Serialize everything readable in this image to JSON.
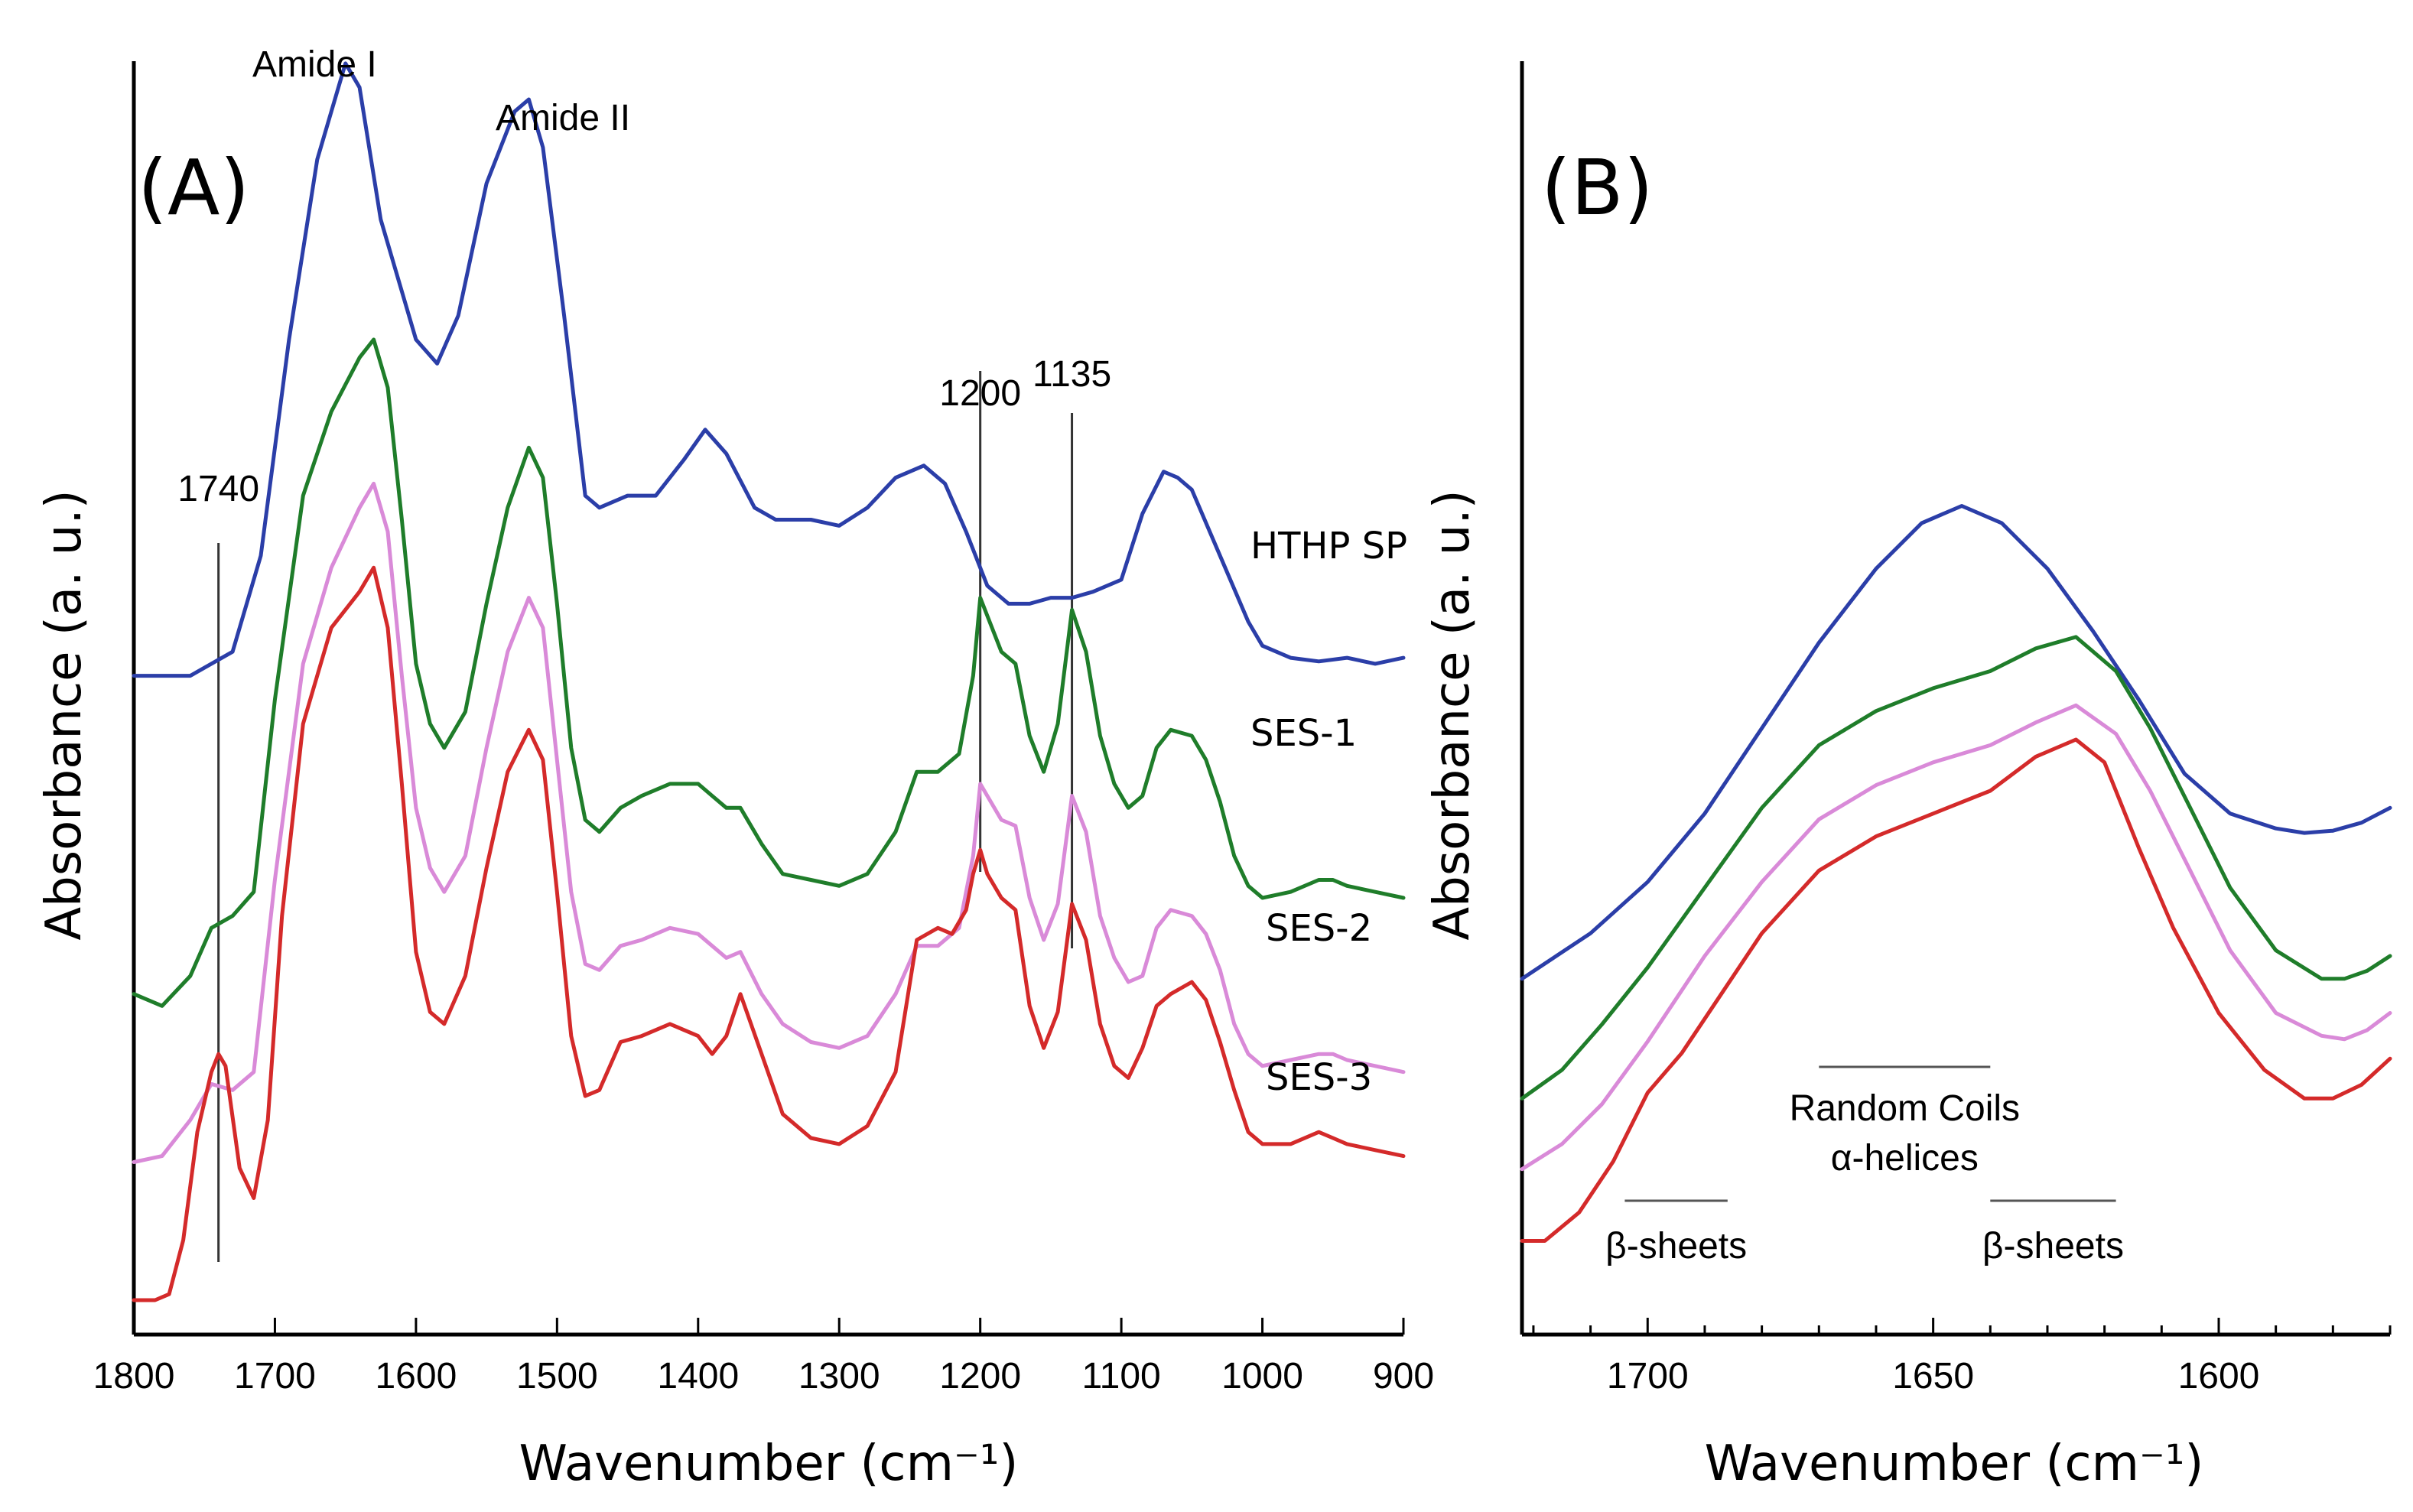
{
  "chart_data": [
    {
      "panel": "(A)",
      "type": "line",
      "xlabel": "Wavenumber (cm⁻¹)",
      "ylabel": "Absorbance (a. u.)",
      "xlim": [
        1800,
        900
      ],
      "x_ticks": [
        1800,
        1700,
        1600,
        1500,
        1400,
        1300,
        1200,
        1100,
        1000,
        900
      ],
      "ylim": [
        0,
        10
      ],
      "band_labels": [
        "Amide I",
        "Amide II"
      ],
      "band_positions": [
        1650,
        1520
      ],
      "marker_lines": [
        {
          "label": "1740",
          "x": 1740
        },
        {
          "label": "1200",
          "x": 1200
        },
        {
          "label": "1135",
          "x": 1135
        }
      ],
      "series": [
        {
          "name": "HTHP SP",
          "color": "#2b3ea8",
          "x": [
            1800,
            1760,
            1730,
            1710,
            1690,
            1670,
            1650,
            1640,
            1625,
            1600,
            1585,
            1570,
            1550,
            1530,
            1520,
            1510,
            1495,
            1480,
            1470,
            1450,
            1430,
            1410,
            1395,
            1380,
            1360,
            1345,
            1320,
            1300,
            1280,
            1260,
            1240,
            1225,
            1210,
            1195,
            1180,
            1165,
            1150,
            1135,
            1120,
            1100,
            1085,
            1070,
            1060,
            1050,
            1030,
            1010,
            1000,
            980,
            960,
            940,
            920,
            900
          ],
          "y": [
            5.2,
            5.2,
            5.4,
            6.2,
            8.0,
            9.5,
            10.3,
            10.1,
            9.0,
            8.0,
            7.8,
            8.2,
            9.3,
            9.9,
            10.0,
            9.6,
            8.2,
            6.7,
            6.6,
            6.7,
            6.7,
            7.0,
            7.25,
            7.05,
            6.6,
            6.5,
            6.5,
            6.45,
            6.6,
            6.85,
            6.95,
            6.8,
            6.4,
            5.95,
            5.8,
            5.8,
            5.85,
            5.85,
            5.9,
            6.0,
            6.55,
            6.9,
            6.85,
            6.75,
            6.2,
            5.65,
            5.45,
            5.35,
            5.32,
            5.35,
            5.3,
            5.35
          ]
        },
        {
          "name": "SES-1",
          "color": "#1f7d2a",
          "x": [
            1800,
            1780,
            1760,
            1745,
            1730,
            1715,
            1700,
            1680,
            1660,
            1640,
            1630,
            1620,
            1610,
            1600,
            1590,
            1580,
            1565,
            1550,
            1535,
            1520,
            1510,
            1500,
            1490,
            1480,
            1470,
            1455,
            1440,
            1420,
            1400,
            1390,
            1380,
            1370,
            1355,
            1340,
            1320,
            1300,
            1280,
            1260,
            1245,
            1230,
            1215,
            1205,
            1200,
            1195,
            1185,
            1175,
            1165,
            1155,
            1145,
            1135,
            1125,
            1115,
            1105,
            1095,
            1085,
            1075,
            1065,
            1050,
            1040,
            1030,
            1020,
            1010,
            1000,
            980,
            960,
            950,
            940,
            920,
            900
          ],
          "y": [
            2.55,
            2.45,
            2.7,
            3.1,
            3.2,
            3.4,
            5.0,
            6.7,
            7.4,
            7.85,
            8.0,
            7.6,
            6.5,
            5.3,
            4.8,
            4.6,
            4.9,
            5.8,
            6.6,
            7.1,
            6.85,
            5.8,
            4.6,
            4.0,
            3.9,
            4.1,
            4.2,
            4.3,
            4.3,
            4.2,
            4.1,
            4.1,
            3.8,
            3.55,
            3.5,
            3.45,
            3.55,
            3.9,
            4.4,
            4.4,
            4.55,
            5.2,
            5.85,
            5.7,
            5.4,
            5.3,
            4.7,
            4.4,
            4.8,
            5.75,
            5.4,
            4.7,
            4.3,
            4.1,
            4.2,
            4.6,
            4.75,
            4.7,
            4.5,
            4.15,
            3.7,
            3.45,
            3.35,
            3.4,
            3.5,
            3.5,
            3.45,
            3.4,
            3.35
          ]
        },
        {
          "name": "SES-2",
          "color": "#d98ad8",
          "x": [
            1800,
            1780,
            1760,
            1745,
            1730,
            1715,
            1700,
            1680,
            1660,
            1640,
            1630,
            1620,
            1610,
            1600,
            1590,
            1580,
            1565,
            1550,
            1535,
            1520,
            1510,
            1500,
            1490,
            1480,
            1470,
            1455,
            1440,
            1420,
            1400,
            1390,
            1380,
            1370,
            1355,
            1340,
            1320,
            1300,
            1280,
            1260,
            1245,
            1230,
            1215,
            1205,
            1200,
            1195,
            1185,
            1175,
            1165,
            1155,
            1145,
            1135,
            1125,
            1115,
            1105,
            1095,
            1085,
            1075,
            1065,
            1050,
            1040,
            1030,
            1020,
            1010,
            1000,
            980,
            960,
            950,
            940,
            920,
            900
          ],
          "y": [
            1.15,
            1.2,
            1.5,
            1.8,
            1.75,
            1.9,
            3.5,
            5.3,
            6.1,
            6.6,
            6.8,
            6.4,
            5.2,
            4.1,
            3.6,
            3.4,
            3.7,
            4.6,
            5.4,
            5.85,
            5.6,
            4.5,
            3.4,
            2.8,
            2.75,
            2.95,
            3.0,
            3.1,
            3.05,
            2.95,
            2.85,
            2.9,
            2.55,
            2.3,
            2.15,
            2.1,
            2.2,
            2.55,
            2.95,
            2.95,
            3.1,
            3.7,
            4.3,
            4.2,
            4.0,
            3.95,
            3.35,
            3.0,
            3.3,
            4.2,
            3.9,
            3.2,
            2.85,
            2.65,
            2.7,
            3.1,
            3.25,
            3.2,
            3.05,
            2.75,
            2.3,
            2.05,
            1.95,
            2.0,
            2.05,
            2.05,
            2.0,
            1.95,
            1.9
          ]
        },
        {
          "name": "SES-3",
          "color": "#d42a2a",
          "x": [
            1800,
            1785,
            1775,
            1765,
            1755,
            1745,
            1740,
            1735,
            1725,
            1715,
            1705,
            1695,
            1680,
            1660,
            1640,
            1630,
            1620,
            1610,
            1600,
            1590,
            1580,
            1565,
            1550,
            1535,
            1520,
            1510,
            1500,
            1490,
            1480,
            1470,
            1455,
            1440,
            1420,
            1400,
            1390,
            1380,
            1370,
            1355,
            1340,
            1320,
            1300,
            1280,
            1260,
            1245,
            1230,
            1220,
            1210,
            1205,
            1200,
            1195,
            1185,
            1175,
            1165,
            1155,
            1145,
            1135,
            1125,
            1115,
            1105,
            1095,
            1085,
            1075,
            1065,
            1050,
            1040,
            1030,
            1020,
            1010,
            1000,
            980,
            960,
            950,
            940,
            920,
            900
          ],
          "y": [
            0.0,
            0.0,
            0.05,
            0.5,
            1.4,
            1.9,
            2.05,
            1.95,
            1.1,
            0.85,
            1.5,
            3.2,
            4.8,
            5.6,
            5.9,
            6.1,
            5.6,
            4.3,
            2.9,
            2.4,
            2.3,
            2.7,
            3.6,
            4.4,
            4.75,
            4.5,
            3.4,
            2.2,
            1.7,
            1.75,
            2.15,
            2.2,
            2.3,
            2.2,
            2.05,
            2.2,
            2.55,
            2.05,
            1.55,
            1.35,
            1.3,
            1.45,
            1.9,
            3.0,
            3.1,
            3.05,
            3.25,
            3.55,
            3.75,
            3.55,
            3.35,
            3.25,
            2.45,
            2.1,
            2.4,
            3.3,
            3.0,
            2.3,
            1.95,
            1.85,
            2.1,
            2.45,
            2.55,
            2.65,
            2.5,
            2.15,
            1.75,
            1.4,
            1.3,
            1.3,
            1.4,
            1.35,
            1.3,
            1.25,
            1.2
          ]
        }
      ],
      "legend": [
        "HTHP SP",
        "SES-1",
        "SES-2",
        "SES-3"
      ]
    },
    {
      "panel": "(B)",
      "type": "line",
      "xlabel": "Wavenumber (cm⁻¹)",
      "ylabel": "Absorbance (a. u.)",
      "xlim": [
        1722,
        1570
      ],
      "x_ticks": [
        1700,
        1650,
        1600
      ],
      "ylim": [
        0,
        10
      ],
      "region_labels": [
        {
          "label": "β-sheets",
          "from": 1704,
          "to": 1686
        },
        {
          "label": "Random Coils",
          "from": 1670,
          "to": 1640
        },
        {
          "label": "α-helices",
          "from": 1670,
          "to": 1640
        },
        {
          "label": "β-sheets",
          "from": 1640,
          "to": 1618
        }
      ],
      "series": [
        {
          "name": "HTHP SP",
          "color": "#2b3ea8",
          "x": [
            1722,
            1710,
            1700,
            1690,
            1680,
            1670,
            1660,
            1652,
            1645,
            1638,
            1630,
            1622,
            1614,
            1606,
            1598,
            1590,
            1585,
            1580,
            1575,
            1570
          ],
          "y": [
            2.35,
            2.75,
            3.2,
            3.8,
            4.55,
            5.3,
            5.95,
            6.35,
            6.5,
            6.35,
            5.95,
            5.4,
            4.8,
            4.15,
            3.8,
            3.67,
            3.63,
            3.65,
            3.72,
            3.85
          ]
        },
        {
          "name": "SES-1",
          "color": "#1f7d2a",
          "x": [
            1722,
            1715,
            1708,
            1700,
            1690,
            1680,
            1670,
            1660,
            1650,
            1640,
            1632,
            1625,
            1618,
            1612,
            1605,
            1598,
            1590,
            1582,
            1578,
            1574,
            1570
          ],
          "y": [
            1.3,
            1.55,
            1.95,
            2.45,
            3.15,
            3.85,
            4.4,
            4.7,
            4.9,
            5.05,
            5.25,
            5.35,
            5.05,
            4.55,
            3.85,
            3.15,
            2.6,
            2.35,
            2.35,
            2.42,
            2.55
          ]
        },
        {
          "name": "SES-2",
          "color": "#d98ad8",
          "x": [
            1722,
            1715,
            1708,
            1700,
            1690,
            1680,
            1670,
            1660,
            1650,
            1640,
            1632,
            1625,
            1618,
            1612,
            1605,
            1598,
            1590,
            1582,
            1578,
            1574,
            1570
          ],
          "y": [
            0.68,
            0.9,
            1.25,
            1.8,
            2.55,
            3.2,
            3.75,
            4.05,
            4.25,
            4.4,
            4.6,
            4.75,
            4.5,
            4.0,
            3.3,
            2.6,
            2.05,
            1.85,
            1.82,
            1.9,
            2.05
          ]
        },
        {
          "name": "SES-3",
          "color": "#d42a2a",
          "x": [
            1722,
            1718,
            1712,
            1706,
            1700,
            1694,
            1688,
            1680,
            1670,
            1660,
            1650,
            1640,
            1632,
            1625,
            1620,
            1614,
            1608,
            1600,
            1592,
            1585,
            1580,
            1575,
            1570
          ],
          "y": [
            0.05,
            0.05,
            0.3,
            0.75,
            1.35,
            1.7,
            2.15,
            2.75,
            3.3,
            3.6,
            3.8,
            4.0,
            4.3,
            4.45,
            4.25,
            3.5,
            2.8,
            2.05,
            1.55,
            1.3,
            1.3,
            1.42,
            1.65
          ]
        }
      ]
    }
  ]
}
